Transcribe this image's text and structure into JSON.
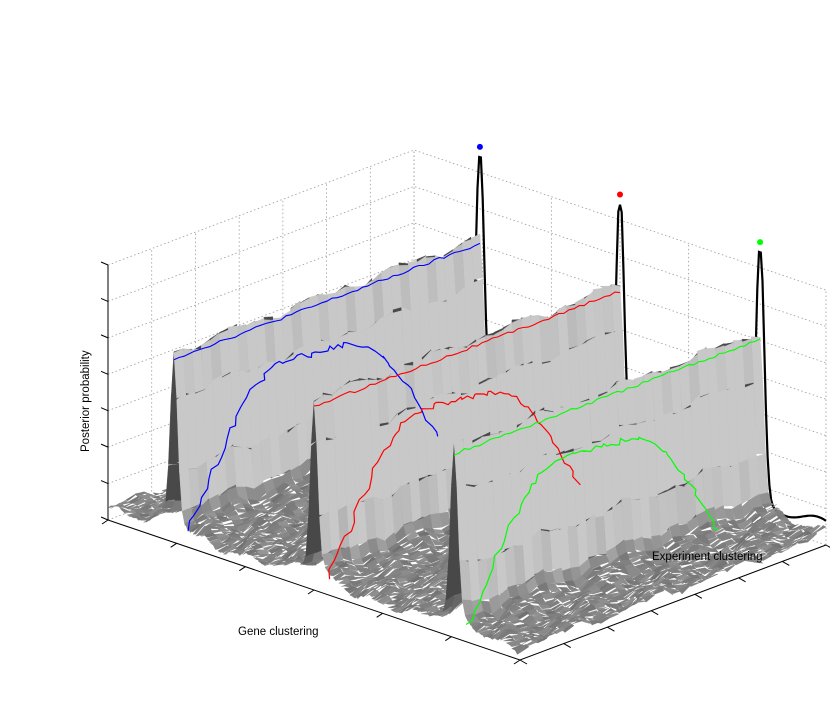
{
  "chart_data": {
    "type": "surface",
    "xlabel": "Gene clustering",
    "ylabel": "Experiment clustering",
    "zlabel": "Posterior probability",
    "grid": true,
    "surface_color": "#808080",
    "ridges": [
      {
        "position": 0.16,
        "color": "#0000ff"
      },
      {
        "position": 0.5,
        "color": "#ff0000"
      },
      {
        "position": 0.84,
        "color": "#00ff00"
      }
    ],
    "marginal_peaks": [
      {
        "position": 0.16,
        "color": "#0000ff"
      },
      {
        "position": 0.5,
        "color": "#ff0000"
      },
      {
        "position": 0.84,
        "color": "#00ff00"
      }
    ]
  }
}
